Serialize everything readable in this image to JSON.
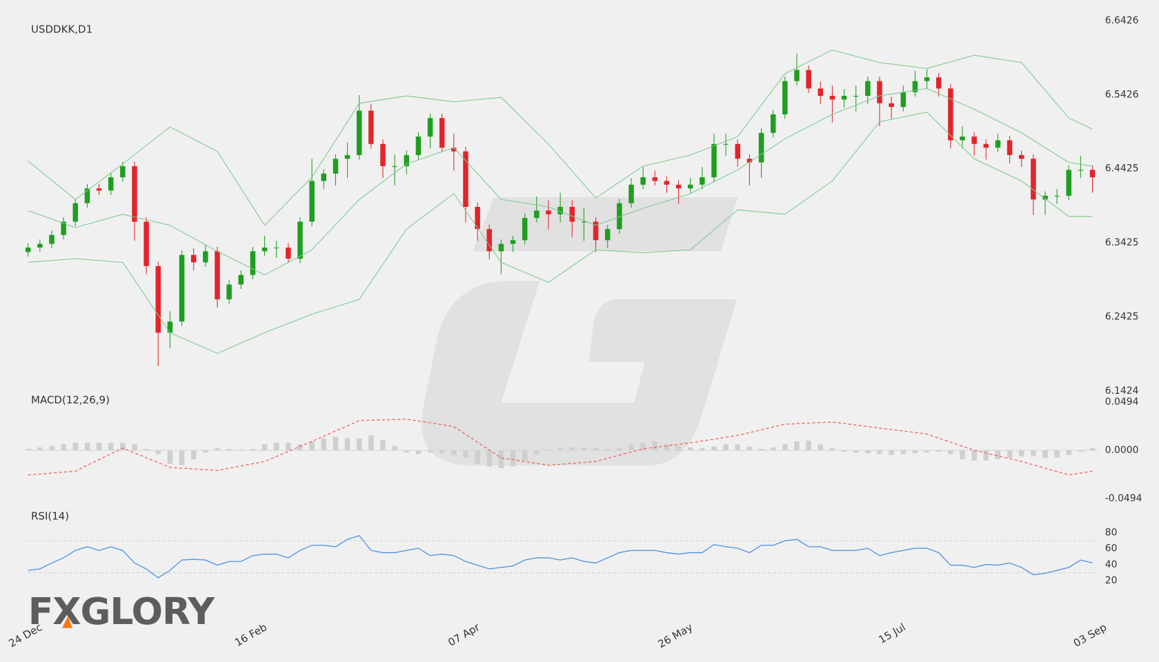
{
  "watermark": "FXGLORY",
  "chart_data": [
    {
      "type": "candlestick",
      "title": "USDDKK,D1",
      "categories": [
        "24 Dec",
        null,
        null,
        null,
        null,
        null,
        null,
        null,
        null,
        null,
        null,
        null,
        null,
        null,
        null,
        null,
        null,
        null,
        null,
        "16 Feb",
        null,
        null,
        null,
        null,
        null,
        null,
        null,
        null,
        null,
        null,
        null,
        null,
        null,
        null,
        null,
        null,
        null,
        "07 Apr",
        null,
        null,
        null,
        null,
        null,
        null,
        null,
        null,
        null,
        null,
        null,
        null,
        null,
        null,
        null,
        null,
        null,
        "26 May",
        null,
        null,
        null,
        null,
        null,
        null,
        null,
        null,
        null,
        null,
        null,
        null,
        null,
        null,
        null,
        null,
        null,
        "15 Jul",
        null,
        null,
        null,
        null,
        null,
        null,
        null,
        null,
        null,
        null,
        null,
        null,
        null,
        null,
        null,
        null,
        "03 Sep"
      ],
      "open": [
        6.33,
        6.336,
        6.341,
        6.353,
        6.371,
        6.396,
        6.416,
        6.413,
        6.431,
        6.446,
        6.371,
        6.311,
        6.221,
        6.236,
        6.326,
        6.316,
        6.331,
        6.266,
        6.286,
        6.299,
        6.331,
        6.336,
        6.336,
        6.321,
        6.371,
        6.426,
        6.436,
        6.456,
        6.461,
        6.521,
        6.476,
        6.446,
        6.446,
        6.461,
        6.486,
        6.511,
        6.471,
        6.466,
        6.391,
        6.361,
        6.331,
        6.341,
        6.346,
        6.376,
        6.386,
        6.381,
        6.391,
        6.371,
        6.371,
        6.346,
        6.361,
        6.396,
        6.421,
        6.431,
        6.426,
        6.421,
        6.416,
        6.421,
        6.431,
        6.476,
        6.476,
        6.456,
        6.451,
        6.491,
        6.516,
        6.561,
        6.576,
        6.551,
        6.541,
        6.536,
        6.541,
        6.541,
        6.561,
        6.531,
        6.526,
        6.546,
        6.561,
        6.566,
        6.551,
        6.481,
        6.486,
        6.476,
        6.471,
        6.481,
        6.461,
        6.456,
        6.401,
        6.406,
        6.406,
        6.441,
        6.441
      ],
      "high": [
        6.342,
        6.347,
        6.359,
        6.377,
        6.402,
        6.422,
        6.422,
        6.437,
        6.452,
        6.452,
        6.377,
        6.317,
        6.25,
        6.332,
        6.335,
        6.34,
        6.337,
        6.292,
        6.305,
        6.337,
        6.352,
        6.345,
        6.342,
        6.377,
        6.456,
        6.442,
        6.462,
        6.478,
        6.542,
        6.53,
        6.482,
        6.462,
        6.467,
        6.492,
        6.517,
        6.517,
        6.49,
        6.472,
        6.397,
        6.367,
        6.347,
        6.352,
        6.382,
        6.405,
        6.4,
        6.41,
        6.4,
        6.39,
        6.377,
        6.367,
        6.402,
        6.43,
        6.445,
        6.44,
        6.432,
        6.427,
        6.43,
        6.445,
        6.49,
        6.49,
        6.482,
        6.462,
        6.497,
        6.522,
        6.567,
        6.598,
        6.582,
        6.56,
        6.555,
        6.55,
        6.555,
        6.567,
        6.567,
        6.54,
        6.555,
        6.575,
        6.577,
        6.572,
        6.557,
        6.5,
        6.492,
        6.482,
        6.49,
        6.487,
        6.467,
        6.462,
        6.412,
        6.415,
        6.447,
        6.46,
        6.447
      ],
      "low": [
        6.324,
        6.33,
        6.335,
        6.347,
        6.365,
        6.39,
        6.407,
        6.407,
        6.425,
        6.345,
        6.3,
        6.176,
        6.2,
        6.23,
        6.305,
        6.31,
        6.255,
        6.26,
        6.28,
        6.293,
        6.325,
        6.322,
        6.315,
        6.315,
        6.365,
        6.415,
        6.42,
        6.43,
        6.455,
        6.47,
        6.43,
        6.42,
        6.435,
        6.455,
        6.47,
        6.465,
        6.44,
        6.37,
        6.345,
        6.32,
        6.3,
        6.33,
        6.34,
        6.37,
        6.36,
        6.37,
        6.35,
        6.345,
        6.33,
        6.335,
        6.355,
        6.39,
        6.415,
        6.42,
        6.41,
        6.395,
        6.41,
        6.415,
        6.425,
        6.46,
        6.445,
        6.42,
        6.43,
        6.485,
        6.51,
        6.555,
        6.545,
        6.53,
        6.505,
        6.525,
        6.52,
        6.53,
        6.5,
        6.51,
        6.52,
        6.54,
        6.55,
        6.54,
        6.47,
        6.47,
        6.46,
        6.455,
        6.465,
        6.45,
        6.445,
        6.38,
        6.38,
        6.395,
        6.4,
        6.43,
        6.41
      ],
      "close": [
        6.336,
        6.341,
        6.353,
        6.371,
        6.396,
        6.416,
        6.413,
        6.431,
        6.446,
        6.371,
        6.311,
        6.221,
        6.236,
        6.326,
        6.316,
        6.331,
        6.266,
        6.286,
        6.299,
        6.331,
        6.336,
        6.336,
        6.321,
        6.371,
        6.426,
        6.436,
        6.456,
        6.461,
        6.521,
        6.476,
        6.446,
        6.446,
        6.461,
        6.486,
        6.511,
        6.471,
        6.466,
        6.391,
        6.361,
        6.331,
        6.341,
        6.346,
        6.376,
        6.386,
        6.381,
        6.391,
        6.371,
        6.371,
        6.346,
        6.361,
        6.396,
        6.421,
        6.431,
        6.426,
        6.421,
        6.416,
        6.421,
        6.431,
        6.476,
        6.476,
        6.456,
        6.451,
        6.491,
        6.516,
        6.561,
        6.576,
        6.551,
        6.541,
        6.536,
        6.541,
        6.541,
        6.561,
        6.531,
        6.526,
        6.546,
        6.561,
        6.566,
        6.551,
        6.481,
        6.486,
        6.476,
        6.471,
        6.481,
        6.461,
        6.456,
        6.401,
        6.406,
        6.406,
        6.441,
        6.441,
        6.431
      ],
      "up_color": "#1f9e1f",
      "down_color": "#e3242b",
      "series": [
        {
          "color": "#7dc98f",
          "x": [
            0,
            4,
            8,
            12,
            16,
            20,
            24,
            28,
            32,
            36,
            40,
            44,
            48,
            52,
            56,
            60,
            64,
            68,
            72,
            76,
            80,
            84,
            88,
            90
          ],
          "values": [
            6.453,
            6.401,
            6.449,
            6.499,
            6.466,
            6.366,
            6.431,
            6.531,
            6.541,
            6.533,
            6.539,
            6.476,
            6.403,
            6.446,
            6.461,
            6.486,
            6.571,
            6.603,
            6.586,
            6.578,
            6.596,
            6.586,
            6.511,
            6.496
          ]
        },
        {
          "color": "#7dc98f",
          "x": [
            0,
            4,
            8,
            12,
            16,
            20,
            24,
            28,
            32,
            36,
            40,
            44,
            48,
            52,
            56,
            60,
            64,
            68,
            72,
            76,
            80,
            84,
            88,
            90
          ],
          "values": [
            6.386,
            6.363,
            6.381,
            6.366,
            6.331,
            6.299,
            6.333,
            6.401,
            6.449,
            6.471,
            6.401,
            6.391,
            6.366,
            6.389,
            6.409,
            6.441,
            6.483,
            6.516,
            6.541,
            6.551,
            6.523,
            6.491,
            6.451,
            6.446
          ]
        },
        {
          "color": "#7dc98f",
          "x": [
            0,
            4,
            8,
            12,
            16,
            20,
            24,
            28,
            32,
            36,
            40,
            44,
            48,
            52,
            56,
            60,
            64,
            68,
            72,
            76,
            80,
            84,
            88,
            90
          ],
          "values": [
            6.316,
            6.321,
            6.316,
            6.221,
            6.193,
            6.221,
            6.246,
            6.266,
            6.361,
            6.409,
            6.316,
            6.289,
            6.333,
            6.329,
            6.333,
            6.387,
            6.381,
            6.426,
            6.506,
            6.519,
            6.456,
            6.426,
            6.378,
            6.378
          ]
        }
      ],
      "ylim": [
        6.1424,
        6.6426
      ],
      "yticks": [
        6.6426,
        6.5426,
        6.4425,
        6.3425,
        6.2425,
        6.1424
      ]
    },
    {
      "type": "macd",
      "title": "MACD(12,26,9)",
      "histogram": {
        "color": "#cfcfcf",
        "values": [
          0.0015,
          0.003,
          0.0046,
          0.0061,
          0.0076,
          0.0076,
          0.0076,
          0.0076,
          0.0076,
          0.0061,
          0.0015,
          -0.0038,
          -0.0137,
          -0.0152,
          -0.0091,
          -0.0023,
          0.0023,
          0.0015,
          0.0008,
          0.0015,
          0.0061,
          0.0076,
          0.0076,
          0.0061,
          0.0091,
          0.0122,
          0.0137,
          0.0122,
          0.0122,
          0.0152,
          0.0106,
          0.0046,
          -0.0023,
          -0.0038,
          -0.0023,
          -0.003,
          -0.0046,
          -0.0076,
          -0.0137,
          -0.0167,
          -0.0182,
          -0.0167,
          -0.0106,
          -0.0046,
          -0.0008,
          0.0023,
          0.003,
          0.003,
          0.0023,
          0.0015,
          0.0023,
          0.0061,
          0.0076,
          0.0091,
          0.0061,
          0.0046,
          0.003,
          0.0023,
          0.0038,
          0.0061,
          0.0061,
          0.0038,
          0.0015,
          0.003,
          0.0061,
          0.0091,
          0.0099,
          0.0061,
          0.0023,
          -0.0015,
          -0.0023,
          -0.003,
          -0.0038,
          -0.0046,
          -0.0038,
          -0.003,
          -0.0023,
          -0.0015,
          -0.0038,
          -0.0091,
          -0.0106,
          -0.0106,
          -0.0091,
          -0.0076,
          -0.0061,
          -0.0061,
          -0.0076,
          -0.0076,
          -0.0046,
          -0.0015,
          0.0023
        ]
      },
      "signal": {
        "color": "#f0605a",
        "x": [
          0,
          4,
          8,
          12,
          16,
          20,
          24,
          28,
          32,
          36,
          40,
          44,
          48,
          52,
          56,
          60,
          64,
          68,
          72,
          76,
          80,
          84,
          88,
          90
        ],
        "values": [
          -0.0251,
          -0.0213,
          0.0023,
          -0.0175,
          -0.0205,
          -0.0114,
          0.0091,
          0.0304,
          0.0319,
          0.0243,
          -0.0076,
          -0.0152,
          -0.0114,
          0.0015,
          0.0076,
          0.0152,
          0.0266,
          0.0289,
          0.0228,
          0.0167,
          0.0,
          -0.0114,
          -0.0251,
          -0.0213
        ]
      },
      "ylim": [
        -0.0494,
        0.0494
      ],
      "yticks": [
        0.0494,
        {
          "value": 0,
          "label": "0.0000"
        },
        -0.0494
      ]
    },
    {
      "type": "line",
      "title": "RSI(14)",
      "color": "#4a8fe0",
      "values": [
        32.9,
        34.8,
        42.2,
        48.6,
        57.8,
        62.5,
        57.8,
        62.5,
        57.8,
        42.2,
        34.8,
        23.7,
        32.9,
        45.8,
        46.8,
        45.8,
        39.4,
        44.0,
        44.0,
        51.4,
        53.2,
        53.2,
        48.6,
        57.8,
        64.3,
        64.3,
        62.5,
        71.7,
        76.3,
        57.8,
        55.1,
        55.1,
        57.8,
        60.6,
        51.4,
        53.2,
        51.4,
        44.0,
        39.4,
        34.8,
        36.6,
        38.5,
        45.8,
        48.6,
        48.6,
        45.8,
        48.6,
        44.0,
        42.2,
        48.6,
        55.1,
        57.8,
        57.8,
        57.8,
        55.1,
        53.2,
        55.1,
        55.1,
        65.2,
        62.5,
        60.6,
        55.1,
        64.3,
        64.3,
        69.8,
        71.7,
        62.5,
        62.5,
        57.8,
        57.8,
        57.8,
        60.6,
        51.4,
        55.1,
        57.8,
        60.6,
        60.6,
        55.1,
        39.4,
        39.4,
        36.6,
        40.3,
        39.4,
        42.2,
        36.6,
        27.4,
        29.2,
        32.9,
        36.6,
        45.8,
        42.2
      ],
      "levels": [
        70,
        30
      ],
      "ylim": [
        20,
        80
      ],
      "yticks": [
        80,
        60,
        40,
        20
      ]
    }
  ]
}
